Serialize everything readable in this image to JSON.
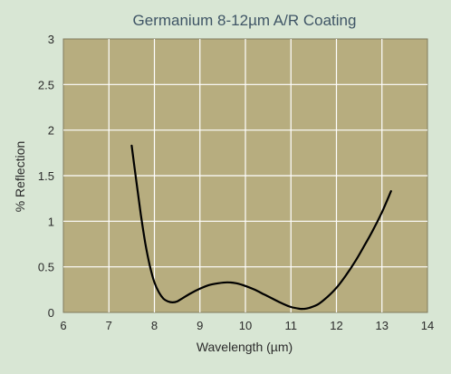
{
  "chart_data": {
    "type": "line",
    "title": "Germanium 8-12µm A/R Coating",
    "xlabel": "Wavelength (µm)",
    "ylabel": "% Reflection",
    "xlim": [
      6,
      14
    ],
    "ylim": [
      0,
      3
    ],
    "x_ticks": [
      6,
      7,
      8,
      9,
      10,
      11,
      12,
      13,
      14
    ],
    "y_ticks": [
      0,
      0.5,
      1,
      1.5,
      2,
      2.5,
      3
    ],
    "x_tick_labels": [
      "6",
      "7",
      "8",
      "9",
      "10",
      "11",
      "12",
      "13",
      "14"
    ],
    "y_tick_labels": [
      "0",
      "0.5",
      "1",
      "1.5",
      "2",
      "2.5",
      "3"
    ],
    "grid": true,
    "colors": {
      "plot_background": "#b7ad7f",
      "grid": "#ffffff",
      "line": "#000000",
      "page_background": "#d8e6d4"
    },
    "series": [
      {
        "x": [
          7.5,
          7.6,
          7.7,
          7.8,
          7.9,
          8.0,
          8.1,
          8.2,
          8.3,
          8.4,
          8.5,
          8.6,
          8.8,
          9.0,
          9.2,
          9.4,
          9.6,
          9.8,
          10.0,
          10.2,
          10.4,
          10.6,
          10.8,
          11.0,
          11.2,
          11.3,
          11.4,
          11.6,
          11.8,
          12.0,
          12.2,
          12.4,
          12.6,
          12.8,
          13.0,
          13.2
        ],
        "y": [
          1.83,
          1.45,
          1.08,
          0.76,
          0.51,
          0.33,
          0.22,
          0.15,
          0.12,
          0.11,
          0.12,
          0.15,
          0.21,
          0.26,
          0.3,
          0.32,
          0.33,
          0.32,
          0.29,
          0.25,
          0.2,
          0.15,
          0.1,
          0.06,
          0.04,
          0.04,
          0.05,
          0.09,
          0.17,
          0.27,
          0.4,
          0.55,
          0.72,
          0.9,
          1.1,
          1.33
        ]
      }
    ]
  }
}
